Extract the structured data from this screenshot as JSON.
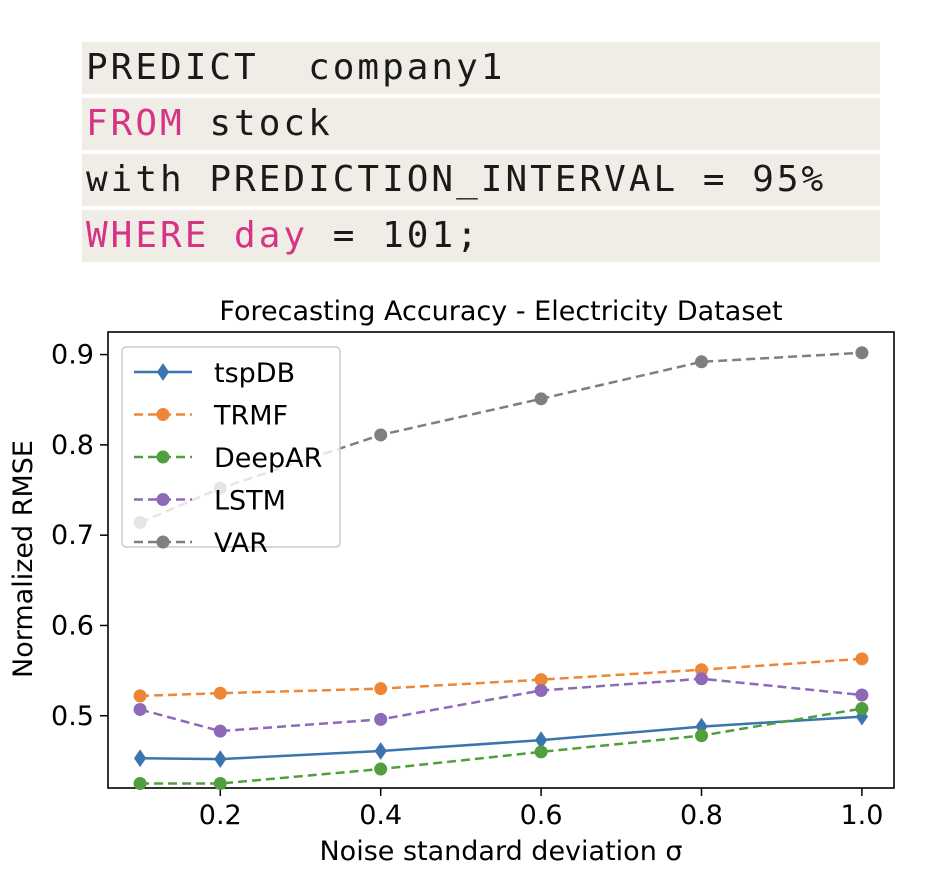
{
  "code": {
    "line1": "PREDICT  company1",
    "line2_kw": "FROM",
    "line2_rest": " stock",
    "line3": "with PREDICTION_INTERVAL = 95%",
    "line4_kw": "WHERE day",
    "line4_rest": " = 101;",
    "keyword_color": "#d63384"
  },
  "chart_data": {
    "type": "line",
    "title": "Forecasting Accuracy - Electricity Dataset",
    "xlabel": "Noise standard deviation σ",
    "ylabel": "Normalized RMSE",
    "x": [
      0.1,
      0.2,
      0.4,
      0.6,
      0.8,
      1.0
    ],
    "xticks": [
      0.2,
      0.4,
      0.6,
      0.8,
      1.0
    ],
    "xtick_labels": [
      "0.2",
      "0.4",
      "0.6",
      "0.8",
      "1.0"
    ],
    "yticks": [
      0.5,
      0.6,
      0.7,
      0.8,
      0.9
    ],
    "ytick_labels": [
      "0.5",
      "0.6",
      "0.7",
      "0.8",
      "0.9"
    ],
    "xlim": [
      0.06,
      1.04
    ],
    "ylim": [
      0.42,
      0.925
    ],
    "grid": false,
    "legend_position": "upper-left",
    "series": [
      {
        "name": "tspDB",
        "values": [
          0.453,
          0.452,
          0.461,
          0.473,
          0.488,
          0.499
        ],
        "color": "#3b75af",
        "dash": false,
        "marker": "diamond"
      },
      {
        "name": "TRMF",
        "values": [
          0.522,
          0.525,
          0.53,
          0.54,
          0.551,
          0.563
        ],
        "color": "#ef8636",
        "dash": true,
        "marker": "circle"
      },
      {
        "name": "DeepAR",
        "values": [
          0.425,
          0.425,
          0.441,
          0.46,
          0.478,
          0.508
        ],
        "color": "#519e3e",
        "dash": true,
        "marker": "circle"
      },
      {
        "name": "LSTM",
        "values": [
          0.507,
          0.483,
          0.496,
          0.528,
          0.541,
          0.523
        ],
        "color": "#8d69b8",
        "dash": true,
        "marker": "circle"
      },
      {
        "name": "VAR",
        "values": [
          0.714,
          0.752,
          0.811,
          0.851,
          0.892,
          0.902
        ],
        "color": "#7f7f7f",
        "dash": true,
        "marker": "circle"
      }
    ]
  }
}
